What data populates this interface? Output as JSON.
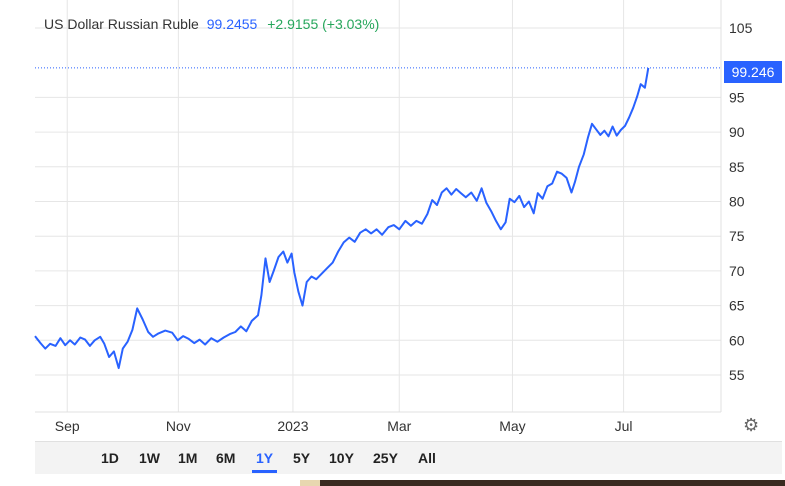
{
  "header": {
    "title": "US Dollar Russian Ruble",
    "price": "99.2455",
    "change": "+2.9155 (+3.03%)"
  },
  "last_value_label": "99.246",
  "range_buttons": [
    "1D",
    "1W",
    "1M",
    "6M",
    "1Y",
    "5Y",
    "10Y",
    "25Y",
    "All"
  ],
  "active_range": "1Y",
  "colors": {
    "line": "#2962ff",
    "change": "#26a65b",
    "grid": "#e6e6e6"
  },
  "icons": {
    "settings": "gear-icon"
  },
  "chart_data": {
    "type": "line",
    "title": "US Dollar Russian Ruble",
    "y_ticks": [
      55,
      60,
      65,
      70,
      75,
      80,
      85,
      90,
      95,
      105
    ],
    "ylim": [
      50,
      107
    ],
    "x_ticks": [
      {
        "label": "Sep",
        "t": 0.047
      },
      {
        "label": "Nov",
        "t": 0.209
      },
      {
        "label": "2023",
        "t": 0.376
      },
      {
        "label": "Mar",
        "t": 0.531
      },
      {
        "label": "May",
        "t": 0.696
      },
      {
        "label": "Jul",
        "t": 0.858
      }
    ],
    "xlim": [
      0,
      1
    ],
    "grid": true,
    "series": [
      {
        "values": [
          [
            0.0,
            60.6
          ],
          [
            0.008,
            59.6
          ],
          [
            0.015,
            58.8
          ],
          [
            0.022,
            59.5
          ],
          [
            0.03,
            59.2
          ],
          [
            0.037,
            60.3
          ],
          [
            0.044,
            59.3
          ],
          [
            0.051,
            60.0
          ],
          [
            0.058,
            59.4
          ],
          [
            0.066,
            60.4
          ],
          [
            0.073,
            60.1
          ],
          [
            0.08,
            59.2
          ],
          [
            0.087,
            60.0
          ],
          [
            0.095,
            60.5
          ],
          [
            0.101,
            59.5
          ],
          [
            0.108,
            57.6
          ],
          [
            0.115,
            58.4
          ],
          [
            0.122,
            56.0
          ],
          [
            0.128,
            58.8
          ],
          [
            0.135,
            59.8
          ],
          [
            0.142,
            61.5
          ],
          [
            0.149,
            64.6
          ],
          [
            0.157,
            63.0
          ],
          [
            0.165,
            61.2
          ],
          [
            0.172,
            60.5
          ],
          [
            0.18,
            61.0
          ],
          [
            0.19,
            61.4
          ],
          [
            0.2,
            61.1
          ],
          [
            0.208,
            60.0
          ],
          [
            0.216,
            60.6
          ],
          [
            0.224,
            60.2
          ],
          [
            0.232,
            59.6
          ],
          [
            0.24,
            60.1
          ],
          [
            0.248,
            59.4
          ],
          [
            0.257,
            60.3
          ],
          [
            0.266,
            59.8
          ],
          [
            0.275,
            60.4
          ],
          [
            0.284,
            60.9
          ],
          [
            0.292,
            61.2
          ],
          [
            0.3,
            62.0
          ],
          [
            0.308,
            61.3
          ],
          [
            0.316,
            62.8
          ],
          [
            0.325,
            63.6
          ],
          [
            0.33,
            66.5
          ],
          [
            0.336,
            71.8
          ],
          [
            0.342,
            68.4
          ],
          [
            0.348,
            70.0
          ],
          [
            0.355,
            72.0
          ],
          [
            0.362,
            72.8
          ],
          [
            0.368,
            71.2
          ],
          [
            0.374,
            72.5
          ],
          [
            0.378,
            69.8
          ],
          [
            0.384,
            67.0
          ],
          [
            0.39,
            65.0
          ],
          [
            0.396,
            68.4
          ],
          [
            0.403,
            69.2
          ],
          [
            0.41,
            68.8
          ],
          [
            0.418,
            69.6
          ],
          [
            0.426,
            70.4
          ],
          [
            0.434,
            71.2
          ],
          [
            0.442,
            72.8
          ],
          [
            0.45,
            74.1
          ],
          [
            0.458,
            74.8
          ],
          [
            0.466,
            74.2
          ],
          [
            0.474,
            75.5
          ],
          [
            0.482,
            76.0
          ],
          [
            0.49,
            75.4
          ],
          [
            0.498,
            76.0
          ],
          [
            0.506,
            75.2
          ],
          [
            0.515,
            76.3
          ],
          [
            0.523,
            76.6
          ],
          [
            0.531,
            76.0
          ],
          [
            0.54,
            77.2
          ],
          [
            0.548,
            76.5
          ],
          [
            0.556,
            77.2
          ],
          [
            0.564,
            76.8
          ],
          [
            0.572,
            78.2
          ],
          [
            0.579,
            80.2
          ],
          [
            0.586,
            79.5
          ],
          [
            0.593,
            81.3
          ],
          [
            0.6,
            81.9
          ],
          [
            0.607,
            81.0
          ],
          [
            0.614,
            81.8
          ],
          [
            0.621,
            81.2
          ],
          [
            0.628,
            80.6
          ],
          [
            0.636,
            81.3
          ],
          [
            0.644,
            80.1
          ],
          [
            0.651,
            81.9
          ],
          [
            0.658,
            79.8
          ],
          [
            0.665,
            78.6
          ],
          [
            0.672,
            77.2
          ],
          [
            0.679,
            76.0
          ],
          [
            0.686,
            77.0
          ],
          [
            0.692,
            80.4
          ],
          [
            0.699,
            79.9
          ],
          [
            0.706,
            80.8
          ],
          [
            0.713,
            79.2
          ],
          [
            0.72,
            80.0
          ],
          [
            0.727,
            78.3
          ],
          [
            0.733,
            81.2
          ],
          [
            0.74,
            80.4
          ],
          [
            0.747,
            82.2
          ],
          [
            0.754,
            82.6
          ],
          [
            0.761,
            84.3
          ],
          [
            0.768,
            84.0
          ],
          [
            0.775,
            83.4
          ],
          [
            0.782,
            81.3
          ],
          [
            0.787,
            82.8
          ],
          [
            0.793,
            85.0
          ],
          [
            0.8,
            86.8
          ],
          [
            0.806,
            89.2
          ],
          [
            0.812,
            91.2
          ],
          [
            0.818,
            90.4
          ],
          [
            0.824,
            89.6
          ],
          [
            0.83,
            90.2
          ],
          [
            0.836,
            89.4
          ],
          [
            0.842,
            90.8
          ],
          [
            0.848,
            89.5
          ],
          [
            0.854,
            90.3
          ],
          [
            0.86,
            90.9
          ],
          [
            0.866,
            92.1
          ],
          [
            0.872,
            93.5
          ],
          [
            0.878,
            95.2
          ],
          [
            0.883,
            96.9
          ],
          [
            0.889,
            96.4
          ],
          [
            0.894,
            99.2455
          ]
        ]
      }
    ]
  }
}
